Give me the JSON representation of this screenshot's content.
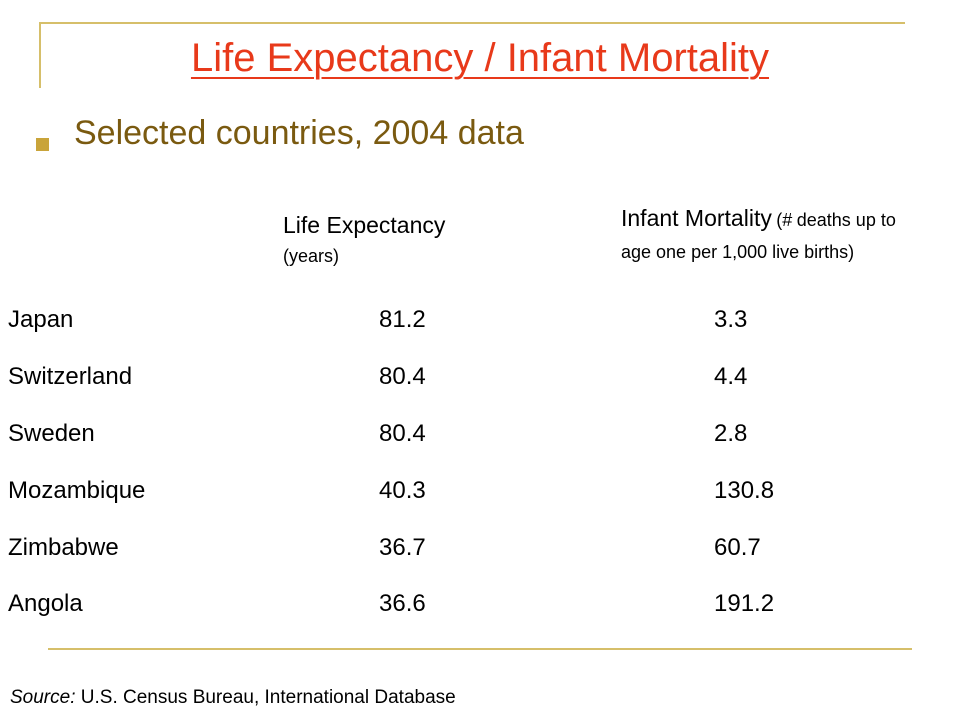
{
  "colors": {
    "title": "#e8391a",
    "bullet_text": "#7a5a10",
    "bullet_square": "#c9a43a",
    "rule": "#d6bf6a"
  },
  "title": "Life Expectancy / Infant Mortality",
  "bullet": "Selected countries, 2004 data",
  "headers": {
    "life_expectancy": "Life Expectancy",
    "life_expectancy_unit": "(years)",
    "infant_mortality": "Infant Mortality",
    "infant_mortality_unit_start": "(#",
    "infant_mortality_unit_rest": "deaths up to age one per 1,000 live births)"
  },
  "rows": [
    {
      "country": "Japan",
      "life_expectancy": "81.2",
      "infant_mortality": "3.3"
    },
    {
      "country": "Switzerland",
      "life_expectancy": "80.4",
      "infant_mortality": "4.4"
    },
    {
      "country": "Sweden",
      "life_expectancy": "80.4",
      "infant_mortality": "2.8"
    },
    {
      "country": "Mozambique",
      "life_expectancy": "40.3",
      "infant_mortality": "130.8"
    },
    {
      "country": "Zimbabwe",
      "life_expectancy": "36.7",
      "infant_mortality": "60.7"
    },
    {
      "country": "Angola",
      "life_expectancy": "36.6",
      "infant_mortality": "191.2"
    }
  ],
  "source": {
    "label": "Source:",
    "text": "U.S. Census Bureau, International Database"
  }
}
